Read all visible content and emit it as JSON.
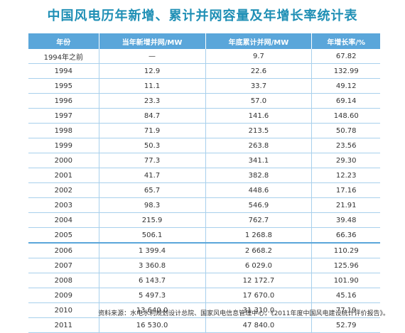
{
  "header": {
    "title": "中国风电历年新增、累计并网容量及年增长率统计表"
  },
  "table": {
    "columns": [
      "年份",
      "当年新增并网/MW",
      "年底累计并网/MW",
      "年增长率/%"
    ],
    "rows": [
      [
        "1994年之前",
        "—",
        "9.7",
        "67.82"
      ],
      [
        "1994",
        "12.9",
        "22.6",
        "132.99"
      ],
      [
        "1995",
        "11.1",
        "33.7",
        "49.12"
      ],
      [
        "1996",
        "23.3",
        "57.0",
        "69.14"
      ],
      [
        "1997",
        "84.7",
        "141.6",
        "148.60"
      ],
      [
        "1998",
        "71.9",
        "213.5",
        "50.78"
      ],
      [
        "1999",
        "50.3",
        "263.8",
        "23.56"
      ],
      [
        "2000",
        "77.3",
        "341.1",
        "29.30"
      ],
      [
        "2001",
        "41.7",
        "382.8",
        "12.23"
      ],
      [
        "2002",
        "65.7",
        "448.6",
        "17.16"
      ],
      [
        "2003",
        "98.3",
        "546.9",
        "21.91"
      ],
      [
        "2004",
        "215.9",
        "762.7",
        "39.48"
      ],
      [
        "2005",
        "506.1",
        "1 268.8",
        "66.36"
      ],
      [
        "2006",
        "1 399.4",
        "2 668.2",
        "110.29"
      ],
      [
        "2007",
        "3 360.8",
        "6 029.0",
        "125.96"
      ],
      [
        "2008",
        "6 143.7",
        "12 172.7",
        "101.90"
      ],
      [
        "2009",
        "5 497.3",
        "17 670.0",
        "45.16"
      ],
      [
        "2010",
        "13 640.0",
        "31 310.0",
        "77.19"
      ],
      [
        "2011",
        "16 530.0",
        "47 840.0",
        "52.79"
      ]
    ]
  },
  "footer": {
    "source": "资料来源：水电水利规划设计总院、国家风电信息管理中心，《2011年度中国风电建设统计评价报告》。"
  }
}
